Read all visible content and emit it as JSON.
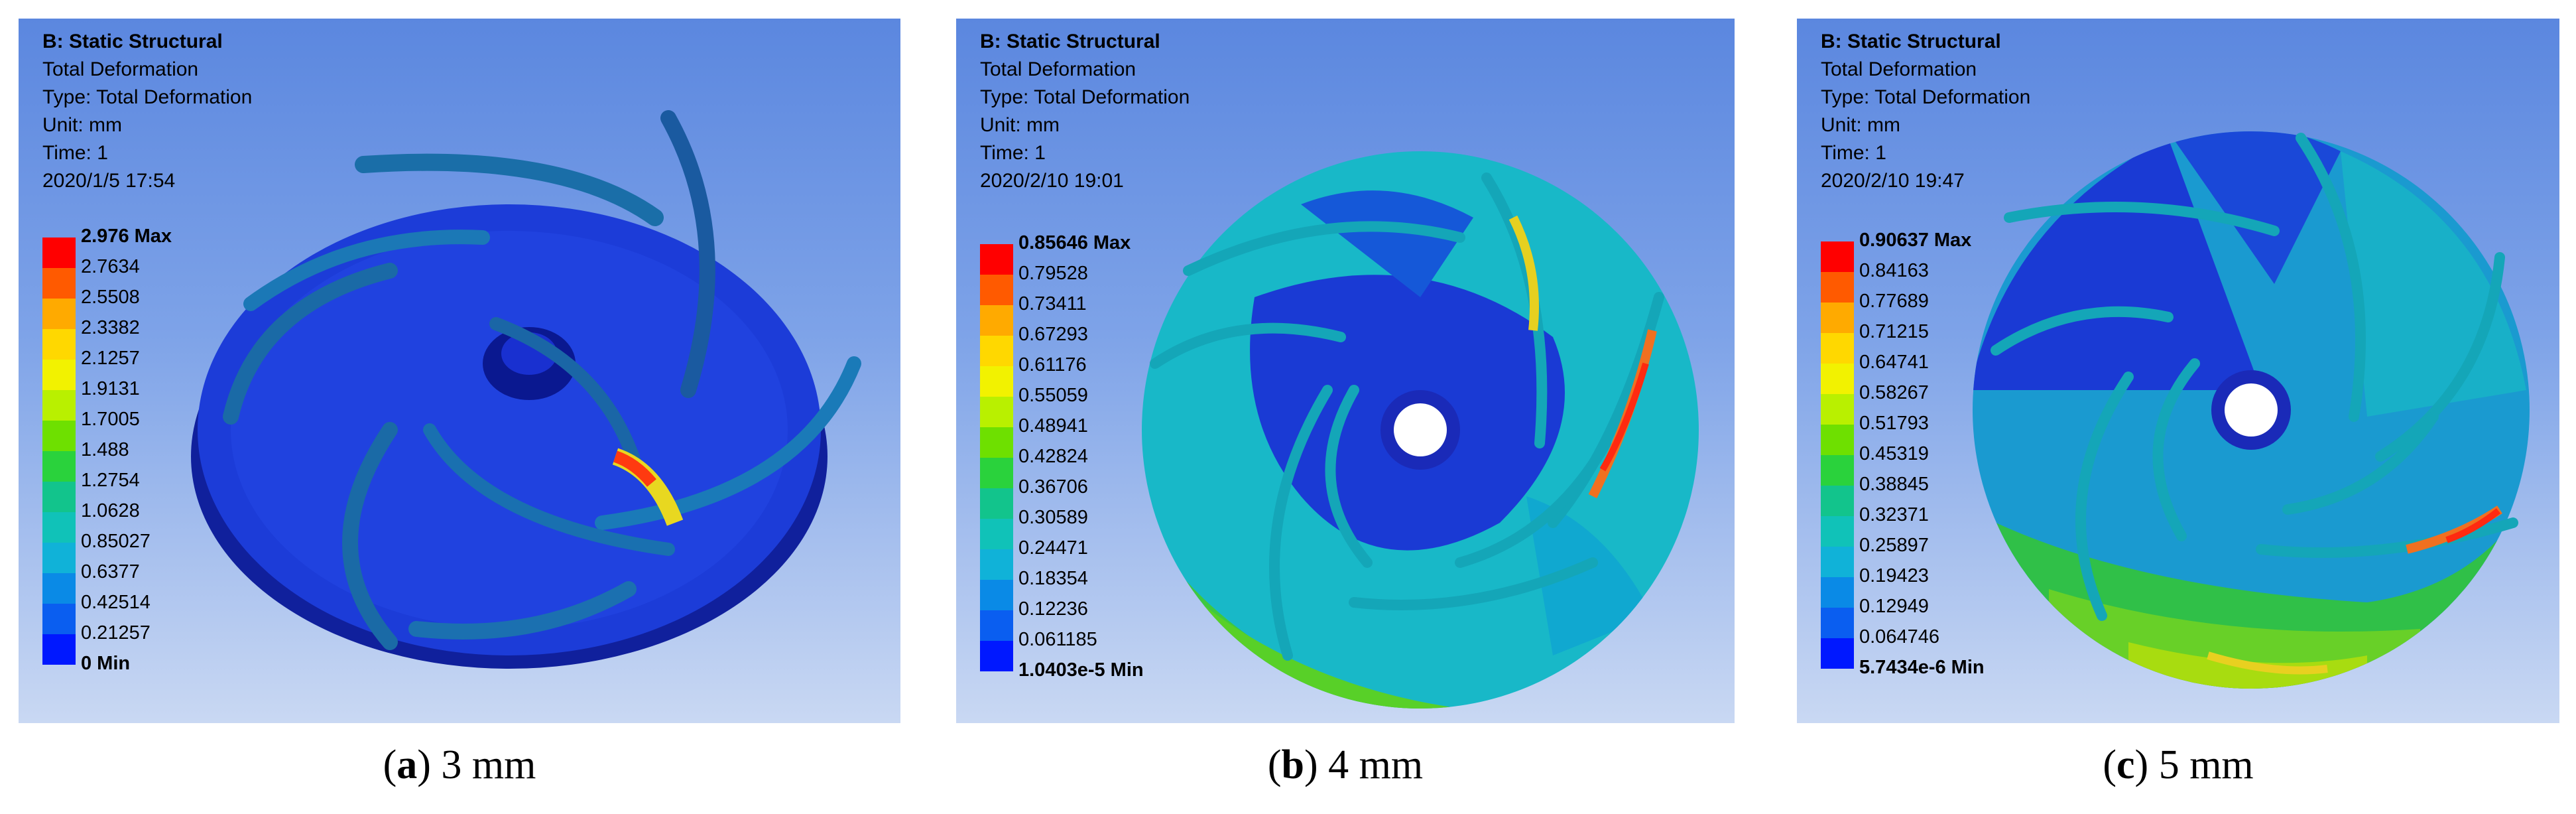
{
  "panels": [
    {
      "id": "a",
      "title": "B: Static Structural",
      "result": "Total Deformation",
      "type_line": "Type: Total Deformation",
      "unit_line": "Unit: mm",
      "time_line": "Time: 1",
      "date_line": "2020/1/5 17:54",
      "legend": [
        "2.976 Max",
        "2.7634",
        "2.5508",
        "2.3382",
        "2.1257",
        "1.9131",
        "1.7005",
        "1.488",
        "1.2754",
        "1.0628",
        "0.85027",
        "0.6377",
        "0.42514",
        "0.21257",
        "0 Min"
      ],
      "caption_letter": "a",
      "caption_text": "3 mm"
    },
    {
      "id": "b",
      "title": "B: Static Structural",
      "result": "Total Deformation",
      "type_line": "Type: Total Deformation",
      "unit_line": "Unit: mm",
      "time_line": "Time: 1",
      "date_line": "2020/2/10 19:01",
      "legend": [
        "0.85646 Max",
        "0.79528",
        "0.73411",
        "0.67293",
        "0.61176",
        "0.55059",
        "0.48941",
        "0.42824",
        "0.36706",
        "0.30589",
        "0.24471",
        "0.18354",
        "0.12236",
        "0.061185",
        "1.0403e-5 Min"
      ],
      "caption_letter": "b",
      "caption_text": "4 mm"
    },
    {
      "id": "c",
      "title": "B: Static Structural",
      "result": "Total Deformation",
      "type_line": "Type: Total Deformation",
      "unit_line": "Unit: mm",
      "time_line": "Time: 1",
      "date_line": "2020/2/10 19:47",
      "legend": [
        "0.90637 Max",
        "0.84163",
        "0.77689",
        "0.71215",
        "0.64741",
        "0.58267",
        "0.51793",
        "0.45319",
        "0.38845",
        "0.32371",
        "0.25897",
        "0.19423",
        "0.12949",
        "0.064746",
        "5.7434e-6 Min"
      ],
      "caption_letter": "c",
      "caption_text": "5 mm"
    }
  ],
  "legend_colors": [
    "#ff0000",
    "#ff5a00",
    "#ffaa00",
    "#ffd800",
    "#f2f200",
    "#b9f000",
    "#6ee000",
    "#2ad23c",
    "#12c48c",
    "#10c2b8",
    "#10b2d8",
    "#0a8ae6",
    "#0a5ef0",
    "#0018ff"
  ]
}
